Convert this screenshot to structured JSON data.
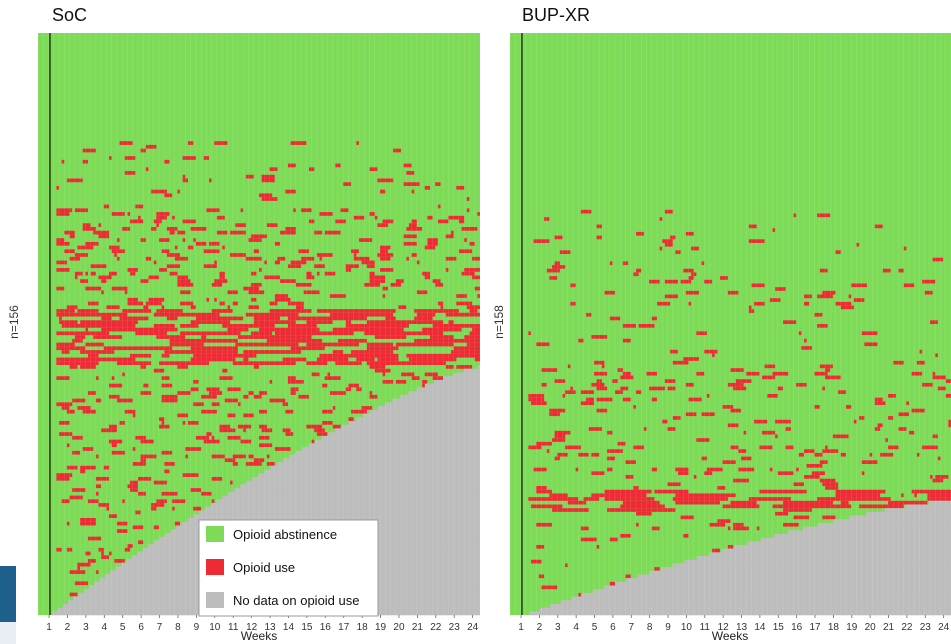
{
  "chart_data": [
    {
      "type": "heatmap",
      "title": "SoC",
      "n_label": "n=156",
      "rows": 156,
      "xlabel": "Weeks",
      "x_ticks": [
        "1",
        "2",
        "3",
        "4",
        "5",
        "6",
        "7",
        "8",
        "9",
        "10",
        "11",
        "12",
        "13",
        "14",
        "15",
        "16",
        "17",
        "18",
        "19",
        "20",
        "21",
        "22",
        "23",
        "24"
      ],
      "xlim": [
        0,
        24
      ],
      "reference_line_week": 1,
      "colors": {
        "abstinence": "#7ddb57",
        "use": "#ee2b35",
        "missing": "#bdbdbd"
      },
      "legend": [
        "Opioid abstinence",
        "Opioid use",
        "No data on opioid use"
      ],
      "legend_position": "bottom-right"
    },
    {
      "type": "heatmap",
      "title": "BUP-XR",
      "n_label": "n=158",
      "rows": 158,
      "xlabel": "Weeks",
      "x_ticks": [
        "1",
        "2",
        "3",
        "4",
        "5",
        "6",
        "7",
        "8",
        "9",
        "10",
        "11",
        "12",
        "13",
        "14",
        "15",
        "16",
        "17",
        "18",
        "19",
        "20",
        "21",
        "22",
        "23",
        "24"
      ],
      "xlim": [
        0,
        24
      ],
      "reference_line_week": 1,
      "colors": {
        "abstinence": "#7ddb57",
        "use": "#ee2b35",
        "missing": "#bdbdbd"
      }
    }
  ]
}
